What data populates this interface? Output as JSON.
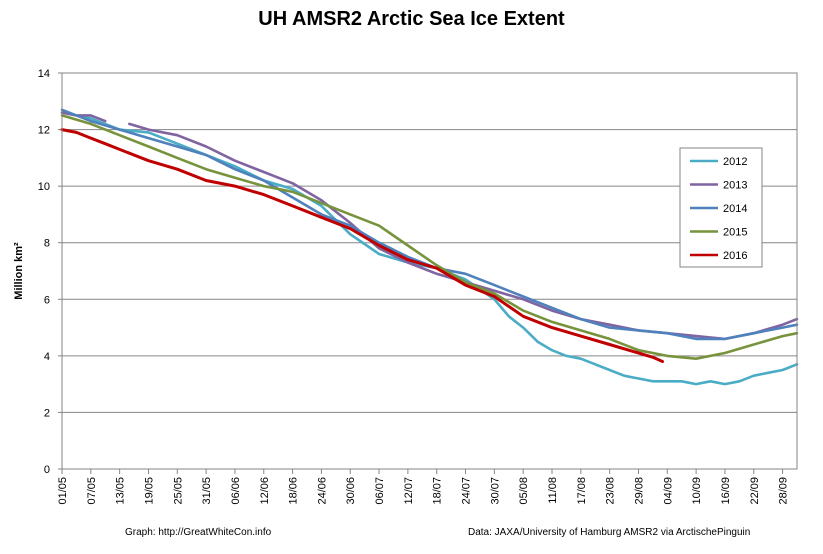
{
  "chart_data": {
    "type": "line",
    "title": "UH AMSR2 Arctic Sea Ice Extent",
    "ylabel": "Million km²",
    "xlabel": "",
    "ylim": [
      0,
      14
    ],
    "yticks": [
      0,
      2,
      4,
      6,
      8,
      10,
      12,
      14
    ],
    "xlim": [
      0,
      153
    ],
    "grid": true,
    "legend_position": "right",
    "x_tick_labels": [
      "01/05",
      "07/05",
      "13/05",
      "19/05",
      "25/05",
      "31/05",
      "06/06",
      "12/06",
      "18/06",
      "24/06",
      "30/06",
      "06/07",
      "12/07",
      "18/07",
      "24/07",
      "30/07",
      "05/08",
      "11/08",
      "17/08",
      "23/08",
      "29/08",
      "04/09",
      "10/09",
      "16/09",
      "22/09",
      "28/09"
    ],
    "x_tick_positions": [
      0,
      6,
      12,
      18,
      24,
      30,
      36,
      42,
      48,
      54,
      60,
      66,
      72,
      78,
      84,
      90,
      96,
      102,
      108,
      114,
      120,
      126,
      132,
      138,
      144,
      150
    ],
    "x_note": "day offset from 01/05",
    "series": [
      {
        "name": "2012",
        "color": "#4bacc6",
        "x": [
          0,
          6,
          12,
          18,
          24,
          30,
          36,
          42,
          48,
          54,
          60,
          66,
          72,
          78,
          84,
          90,
          93,
          96,
          99,
          102,
          105,
          108,
          111,
          114,
          117,
          120,
          123,
          126,
          129,
          132,
          135,
          138,
          141,
          144,
          147,
          150,
          153
        ],
        "y": [
          12.6,
          12.4,
          12.0,
          11.9,
          11.5,
          11.1,
          10.7,
          10.2,
          9.9,
          9.3,
          8.3,
          7.6,
          7.3,
          7.1,
          6.7,
          6.0,
          5.4,
          5.0,
          4.5,
          4.2,
          4.0,
          3.9,
          3.7,
          3.5,
          3.3,
          3.2,
          3.1,
          3.1,
          3.1,
          3.0,
          3.1,
          3.0,
          3.1,
          3.3,
          3.4,
          3.5,
          3.7
        ]
      },
      {
        "name": "2013",
        "color": "#8064a2",
        "x": [
          0,
          3,
          6,
          9,
          null,
          14,
          18,
          24,
          30,
          36,
          42,
          48,
          54,
          60,
          66,
          72,
          78,
          84,
          90,
          96,
          102,
          108,
          114,
          120,
          126,
          132,
          138,
          144,
          150,
          153
        ],
        "y": [
          12.6,
          12.5,
          12.5,
          12.3,
          null,
          12.2,
          12.0,
          11.8,
          11.4,
          10.9,
          10.5,
          10.1,
          9.5,
          8.7,
          7.8,
          7.3,
          6.9,
          6.6,
          6.3,
          6.0,
          5.6,
          5.3,
          5.1,
          4.9,
          4.8,
          4.7,
          4.6,
          4.8,
          5.1,
          5.3
        ]
      },
      {
        "name": "2014",
        "color": "#4f81bd",
        "x": [
          0,
          6,
          12,
          18,
          24,
          30,
          36,
          42,
          48,
          54,
          60,
          66,
          72,
          78,
          84,
          90,
          96,
          102,
          108,
          114,
          120,
          126,
          132,
          138,
          144,
          150,
          153
        ],
        "y": [
          12.7,
          12.3,
          12.0,
          11.7,
          11.4,
          11.1,
          10.6,
          10.2,
          9.6,
          9.0,
          8.6,
          8.0,
          7.5,
          7.1,
          6.9,
          6.5,
          6.1,
          5.7,
          5.3,
          5.0,
          4.9,
          4.8,
          4.6,
          4.6,
          4.8,
          5.0,
          5.1
        ]
      },
      {
        "name": "2015",
        "color": "#77933c",
        "x": [
          0,
          6,
          12,
          18,
          24,
          30,
          36,
          42,
          48,
          54,
          60,
          66,
          72,
          78,
          84,
          90,
          96,
          102,
          108,
          114,
          120,
          126,
          132,
          138,
          144,
          150,
          153
        ],
        "y": [
          12.5,
          12.2,
          11.8,
          11.4,
          11.0,
          10.6,
          10.3,
          10.0,
          9.8,
          9.4,
          9.0,
          8.6,
          7.9,
          7.2,
          6.6,
          6.2,
          5.6,
          5.2,
          4.9,
          4.6,
          4.2,
          4.0,
          3.9,
          4.1,
          4.4,
          4.7,
          4.8
        ]
      },
      {
        "name": "2016",
        "color": "#c00000",
        "x": [
          0,
          3,
          6,
          9,
          12,
          18,
          24,
          30,
          36,
          42,
          48,
          54,
          60,
          66,
          72,
          78,
          84,
          90,
          96,
          102,
          108,
          114,
          120,
          123,
          125
        ],
        "y": [
          12.0,
          11.9,
          11.7,
          11.5,
          11.3,
          10.9,
          10.6,
          10.2,
          10.0,
          9.7,
          9.3,
          8.9,
          8.5,
          7.9,
          7.4,
          7.1,
          6.5,
          6.1,
          5.4,
          5.0,
          4.7,
          4.4,
          4.1,
          3.95,
          3.8
        ]
      }
    ]
  },
  "footer": {
    "left": "Graph: http://GreatWhiteCon.info",
    "right": "Data: JAXA/University of Hamburg AMSR2 via ArctischePinguin"
  }
}
